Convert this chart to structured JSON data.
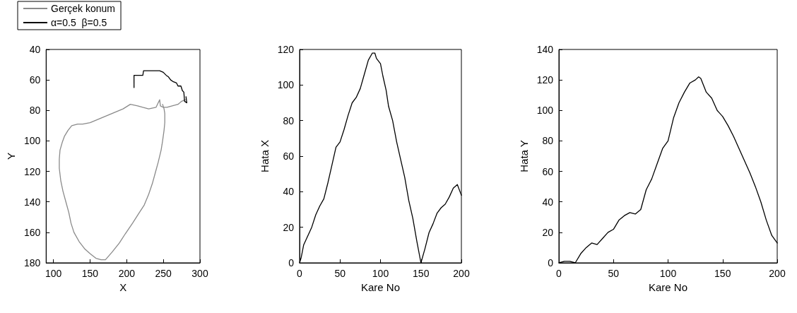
{
  "chart_data": [
    {
      "type": "line",
      "xlabel": "X",
      "ylabel": "Y",
      "xlim": [
        90,
        300
      ],
      "xticks": [
        100,
        150,
        200,
        250,
        300
      ],
      "ylim": [
        180,
        40
      ],
      "yticks": [
        40,
        60,
        80,
        100,
        120,
        140,
        160,
        180
      ],
      "grid": false,
      "legend": "top left",
      "marker": "none",
      "line_style": "solid",
      "series": [
        {
          "name": "Gerçek konum",
          "color": "#8a8a8a",
          "x": [
            280,
            275,
            270,
            262,
            255,
            250,
            246,
            245,
            240,
            230,
            222,
            215,
            205,
            195,
            180,
            165,
            150,
            140,
            133,
            125,
            120,
            115,
            112,
            109,
            108,
            108,
            110,
            113,
            117,
            121,
            124,
            128,
            135,
            143,
            150,
            158,
            165,
            171,
            180,
            190,
            198,
            208,
            216,
            224,
            230,
            235,
            239,
            243,
            247,
            249,
            251,
            252,
            252,
            251,
            249
          ],
          "values": [
            73,
            74,
            76,
            77,
            78,
            78,
            77,
            73,
            78,
            79,
            78,
            77,
            76,
            79,
            82,
            85,
            88,
            89,
            89,
            90,
            93,
            97,
            101,
            106,
            112,
            118,
            126,
            133,
            140,
            147,
            154,
            160,
            166,
            171,
            174,
            177,
            178,
            178,
            173,
            167,
            161,
            154,
            148,
            142,
            135,
            128,
            121,
            114,
            106,
            100,
            93,
            88,
            82,
            79,
            76
          ]
        },
        {
          "name": "α=0.5  β=0.5",
          "color": "#000000",
          "x": [
            210,
            210,
            211,
            218,
            222,
            223,
            230,
            245,
            250,
            254,
            257,
            260,
            263,
            268,
            270,
            274,
            276,
            278,
            279,
            282,
            281
          ],
          "values": [
            65,
            57,
            57,
            57,
            57,
            54,
            54,
            54,
            55,
            57,
            58,
            60,
            61,
            62,
            64,
            64,
            67,
            68,
            74,
            75,
            71
          ]
        }
      ]
    },
    {
      "type": "line",
      "xlabel": "Kare No",
      "ylabel": "Hata X",
      "xlim": [
        0,
        200
      ],
      "xticks": [
        0,
        50,
        100,
        150,
        200
      ],
      "ylim": [
        0,
        120
      ],
      "yticks": [
        0,
        20,
        40,
        60,
        80,
        100,
        120
      ],
      "grid": false,
      "marker": "none",
      "line_style": "solid",
      "x": [
        0,
        2,
        5,
        10,
        15,
        20,
        25,
        30,
        35,
        40,
        45,
        50,
        55,
        60,
        65,
        70,
        75,
        80,
        85,
        90,
        93,
        95,
        100,
        103,
        107,
        110,
        115,
        120,
        125,
        130,
        135,
        140,
        145,
        150,
        155,
        160,
        165,
        170,
        175,
        180,
        185,
        190,
        195,
        200
      ],
      "series": [
        {
          "color": "#000000",
          "values": [
            0,
            3,
            10,
            15,
            20,
            27,
            32,
            36,
            45,
            55,
            65,
            68,
            75,
            83,
            90,
            93,
            98,
            106,
            114,
            118,
            118,
            115,
            112,
            105,
            97,
            88,
            80,
            68,
            58,
            48,
            35,
            25,
            12,
            0,
            8,
            17,
            22,
            28,
            31,
            33,
            37,
            42,
            44,
            38
          ]
        }
      ]
    },
    {
      "type": "line",
      "xlabel": "Kare No",
      "ylabel": "Hata Y",
      "xlim": [
        0,
        200
      ],
      "xticks": [
        0,
        50,
        100,
        150,
        200
      ],
      "ylim": [
        0,
        140
      ],
      "yticks": [
        0,
        20,
        40,
        60,
        80,
        100,
        120,
        140
      ],
      "grid": false,
      "marker": "none",
      "line_style": "solid",
      "x": [
        0,
        5,
        10,
        15,
        20,
        25,
        30,
        35,
        40,
        45,
        50,
        55,
        60,
        65,
        70,
        75,
        80,
        85,
        90,
        95,
        100,
        105,
        110,
        115,
        120,
        125,
        128,
        130,
        135,
        140,
        145,
        150,
        155,
        160,
        165,
        170,
        175,
        180,
        185,
        190,
        195,
        200
      ],
      "series": [
        {
          "color": "#000000",
          "values": [
            0,
            1,
            1,
            0,
            6,
            10,
            13,
            12,
            16,
            20,
            22,
            28,
            31,
            33,
            32,
            35,
            48,
            55,
            65,
            75,
            80,
            95,
            105,
            112,
            118,
            120,
            122,
            121,
            112,
            108,
            100,
            96,
            90,
            83,
            75,
            67,
            59,
            50,
            40,
            28,
            18,
            13
          ]
        }
      ]
    }
  ]
}
